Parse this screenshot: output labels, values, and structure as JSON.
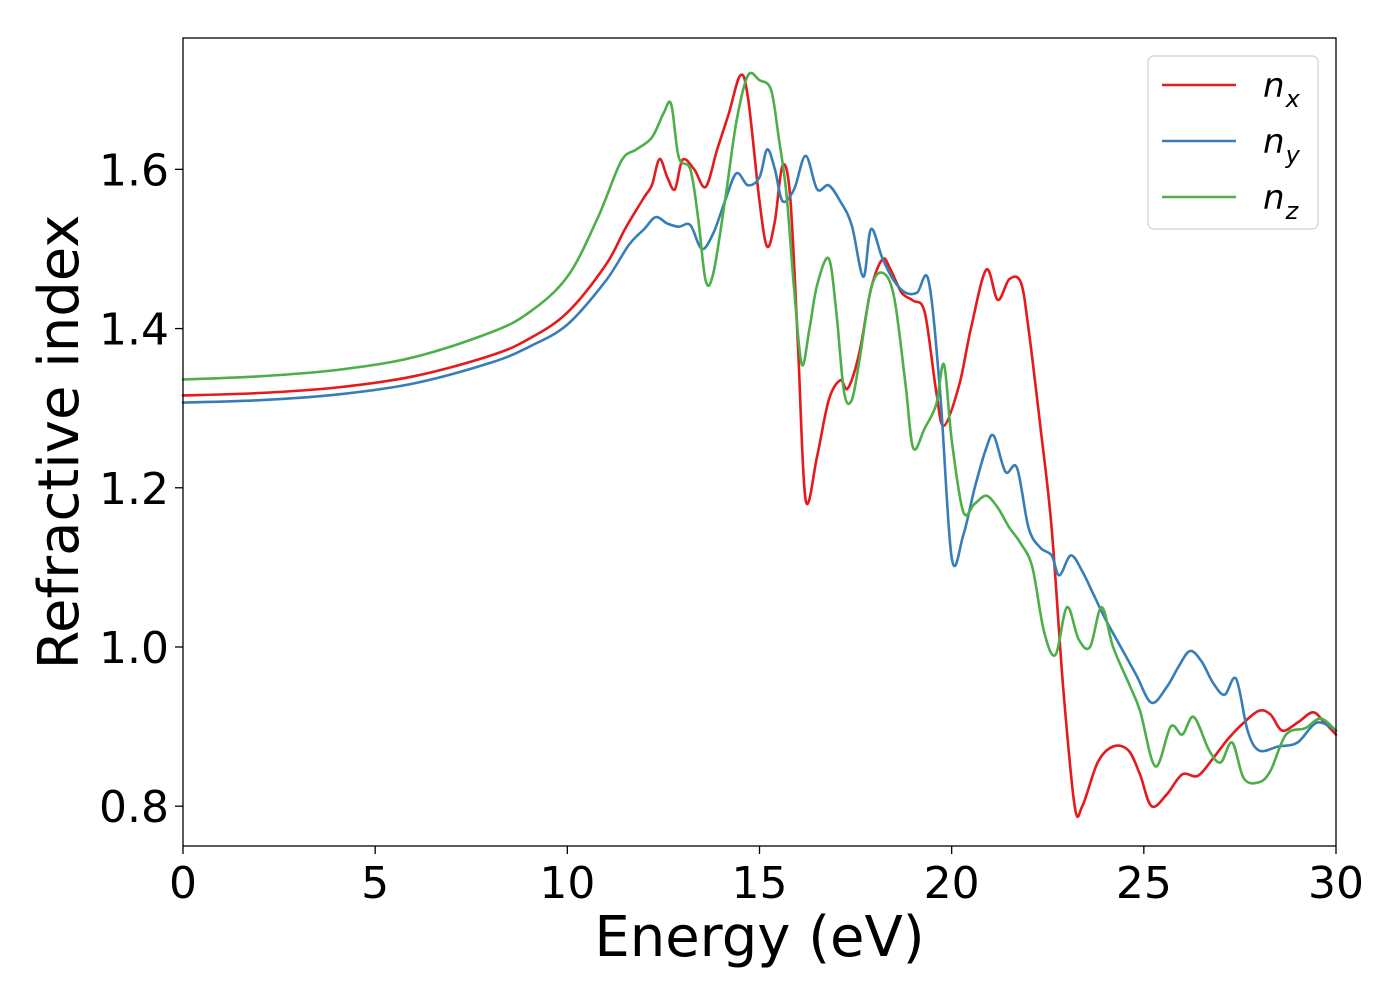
{
  "chart_data": {
    "type": "line",
    "title": "",
    "xlabel": "Energy (eV)",
    "ylabel": "Refractive index",
    "xlim": [
      0,
      30
    ],
    "ylim": [
      0.75,
      1.765
    ],
    "xticks": [
      0,
      5,
      10,
      15,
      20,
      25,
      30
    ],
    "yticks": [
      0.8,
      1.0,
      1.2,
      1.4,
      1.6
    ],
    "xtick_labels": [
      "0",
      "5",
      "10",
      "15",
      "20",
      "25",
      "30"
    ],
    "ytick_labels": [
      "0.8",
      "1.0",
      "1.2",
      "1.4",
      "1.6"
    ],
    "grid": false,
    "legend_position": "top-right",
    "series": [
      {
        "name": "n",
        "subscript": "x",
        "color": "#e41a1c",
        "points": [
          [
            0,
            1.316
          ],
          [
            2,
            1.319
          ],
          [
            4,
            1.326
          ],
          [
            6,
            1.34
          ],
          [
            8,
            1.366
          ],
          [
            9,
            1.387
          ],
          [
            10,
            1.42
          ],
          [
            11,
            1.48
          ],
          [
            11.5,
            1.525
          ],
          [
            12,
            1.565
          ],
          [
            12.2,
            1.58
          ],
          [
            12.4,
            1.613
          ],
          [
            12.6,
            1.59
          ],
          [
            12.8,
            1.575
          ],
          [
            13,
            1.612
          ],
          [
            13.3,
            1.6
          ],
          [
            13.6,
            1.578
          ],
          [
            13.9,
            1.625
          ],
          [
            14.2,
            1.67
          ],
          [
            14.5,
            1.718
          ],
          [
            14.7,
            1.69
          ],
          [
            15,
            1.56
          ],
          [
            15.2,
            1.503
          ],
          [
            15.4,
            1.535
          ],
          [
            15.6,
            1.605
          ],
          [
            15.8,
            1.565
          ],
          [
            16,
            1.38
          ],
          [
            16.2,
            1.185
          ],
          [
            16.5,
            1.24
          ],
          [
            16.8,
            1.31
          ],
          [
            17.1,
            1.335
          ],
          [
            17.3,
            1.325
          ],
          [
            17.6,
            1.37
          ],
          [
            17.9,
            1.45
          ],
          [
            18.2,
            1.487
          ],
          [
            18.4,
            1.475
          ],
          [
            18.7,
            1.445
          ],
          [
            19,
            1.435
          ],
          [
            19.3,
            1.42
          ],
          [
            19.6,
            1.32
          ],
          [
            19.8,
            1.278
          ],
          [
            20.2,
            1.33
          ],
          [
            20.5,
            1.4
          ],
          [
            20.9,
            1.474
          ],
          [
            21.2,
            1.436
          ],
          [
            21.5,
            1.462
          ],
          [
            21.8,
            1.458
          ],
          [
            22,
            1.4
          ],
          [
            22.3,
            1.28
          ],
          [
            22.6,
            1.15
          ],
          [
            22.9,
            0.95
          ],
          [
            23.2,
            0.8
          ],
          [
            23.4,
            0.8
          ],
          [
            23.8,
            0.855
          ],
          [
            24.2,
            0.875
          ],
          [
            24.6,
            0.87
          ],
          [
            24.9,
            0.84
          ],
          [
            25.2,
            0.8
          ],
          [
            25.6,
            0.815
          ],
          [
            26,
            0.84
          ],
          [
            26.4,
            0.838
          ],
          [
            26.8,
            0.86
          ],
          [
            27.2,
            0.885
          ],
          [
            27.6,
            0.905
          ],
          [
            28,
            0.92
          ],
          [
            28.3,
            0.915
          ],
          [
            28.6,
            0.895
          ],
          [
            29,
            0.905
          ],
          [
            29.4,
            0.918
          ],
          [
            29.7,
            0.905
          ],
          [
            30,
            0.89
          ]
        ]
      },
      {
        "name": "n",
        "subscript": "y",
        "color": "#377eb8",
        "points": [
          [
            0,
            1.307
          ],
          [
            2,
            1.31
          ],
          [
            4,
            1.317
          ],
          [
            6,
            1.331
          ],
          [
            8,
            1.357
          ],
          [
            9,
            1.377
          ],
          [
            10,
            1.405
          ],
          [
            11,
            1.46
          ],
          [
            11.6,
            1.505
          ],
          [
            12,
            1.525
          ],
          [
            12.3,
            1.54
          ],
          [
            12.6,
            1.532
          ],
          [
            12.9,
            1.528
          ],
          [
            13.2,
            1.53
          ],
          [
            13.5,
            1.5
          ],
          [
            13.8,
            1.52
          ],
          [
            14.1,
            1.56
          ],
          [
            14.4,
            1.595
          ],
          [
            14.7,
            1.58
          ],
          [
            15,
            1.59
          ],
          [
            15.2,
            1.625
          ],
          [
            15.4,
            1.6
          ],
          [
            15.6,
            1.56
          ],
          [
            15.9,
            1.575
          ],
          [
            16.2,
            1.617
          ],
          [
            16.5,
            1.575
          ],
          [
            16.8,
            1.58
          ],
          [
            17.1,
            1.56
          ],
          [
            17.4,
            1.53
          ],
          [
            17.7,
            1.465
          ],
          [
            17.9,
            1.525
          ],
          [
            18.2,
            1.488
          ],
          [
            18.5,
            1.46
          ],
          [
            18.8,
            1.445
          ],
          [
            19.1,
            1.445
          ],
          [
            19.4,
            1.46
          ],
          [
            19.7,
            1.32
          ],
          [
            20,
            1.112
          ],
          [
            20.3,
            1.14
          ],
          [
            20.6,
            1.2
          ],
          [
            20.9,
            1.25
          ],
          [
            21.1,
            1.265
          ],
          [
            21.4,
            1.22
          ],
          [
            21.7,
            1.225
          ],
          [
            22,
            1.15
          ],
          [
            22.3,
            1.125
          ],
          [
            22.6,
            1.115
          ],
          [
            22.8,
            1.09
          ],
          [
            23.1,
            1.115
          ],
          [
            23.4,
            1.095
          ],
          [
            23.7,
            1.065
          ],
          [
            24,
            1.035
          ],
          [
            24.4,
            1.0
          ],
          [
            24.8,
            0.965
          ],
          [
            25.2,
            0.93
          ],
          [
            25.6,
            0.95
          ],
          [
            25.9,
            0.975
          ],
          [
            26.2,
            0.995
          ],
          [
            26.5,
            0.982
          ],
          [
            26.8,
            0.955
          ],
          [
            27.1,
            0.94
          ],
          [
            27.4,
            0.96
          ],
          [
            27.7,
            0.895
          ],
          [
            28,
            0.87
          ],
          [
            28.5,
            0.875
          ],
          [
            29,
            0.88
          ],
          [
            29.5,
            0.905
          ],
          [
            30,
            0.895
          ]
        ]
      },
      {
        "name": "n",
        "subscript": "z",
        "color": "#4daf4a",
        "points": [
          [
            0,
            1.336
          ],
          [
            2,
            1.34
          ],
          [
            4,
            1.348
          ],
          [
            6,
            1.364
          ],
          [
            8,
            1.395
          ],
          [
            9,
            1.42
          ],
          [
            10,
            1.465
          ],
          [
            10.8,
            1.54
          ],
          [
            11.4,
            1.61
          ],
          [
            11.8,
            1.625
          ],
          [
            12.2,
            1.64
          ],
          [
            12.5,
            1.67
          ],
          [
            12.7,
            1.682
          ],
          [
            12.9,
            1.615
          ],
          [
            13.2,
            1.6
          ],
          [
            13.4,
            1.54
          ],
          [
            13.6,
            1.46
          ],
          [
            13.8,
            1.47
          ],
          [
            14.1,
            1.56
          ],
          [
            14.4,
            1.66
          ],
          [
            14.7,
            1.718
          ],
          [
            15,
            1.712
          ],
          [
            15.3,
            1.7
          ],
          [
            15.5,
            1.64
          ],
          [
            15.7,
            1.57
          ],
          [
            15.9,
            1.45
          ],
          [
            16.1,
            1.355
          ],
          [
            16.3,
            1.4
          ],
          [
            16.5,
            1.455
          ],
          [
            16.8,
            1.488
          ],
          [
            17,
            1.42
          ],
          [
            17.2,
            1.32
          ],
          [
            17.4,
            1.31
          ],
          [
            17.6,
            1.36
          ],
          [
            17.9,
            1.45
          ],
          [
            18.2,
            1.47
          ],
          [
            18.5,
            1.44
          ],
          [
            18.8,
            1.33
          ],
          [
            19,
            1.25
          ],
          [
            19.3,
            1.275
          ],
          [
            19.6,
            1.305
          ],
          [
            19.8,
            1.355
          ],
          [
            20,
            1.26
          ],
          [
            20.3,
            1.17
          ],
          [
            20.6,
            1.18
          ],
          [
            20.9,
            1.19
          ],
          [
            21.2,
            1.175
          ],
          [
            21.5,
            1.15
          ],
          [
            21.8,
            1.13
          ],
          [
            22.1,
            1.1
          ],
          [
            22.4,
            1.02
          ],
          [
            22.7,
            0.99
          ],
          [
            23,
            1.05
          ],
          [
            23.3,
            1.01
          ],
          [
            23.6,
            1.0
          ],
          [
            23.9,
            1.05
          ],
          [
            24.2,
            1.0
          ],
          [
            24.6,
            0.955
          ],
          [
            24.9,
            0.92
          ],
          [
            25.3,
            0.85
          ],
          [
            25.7,
            0.9
          ],
          [
            26,
            0.89
          ],
          [
            26.3,
            0.912
          ],
          [
            26.7,
            0.87
          ],
          [
            27,
            0.855
          ],
          [
            27.3,
            0.88
          ],
          [
            27.6,
            0.835
          ],
          [
            28,
            0.83
          ],
          [
            28.3,
            0.845
          ],
          [
            28.7,
            0.89
          ],
          [
            29.2,
            0.898
          ],
          [
            29.6,
            0.91
          ],
          [
            30,
            0.895
          ]
        ]
      }
    ]
  }
}
